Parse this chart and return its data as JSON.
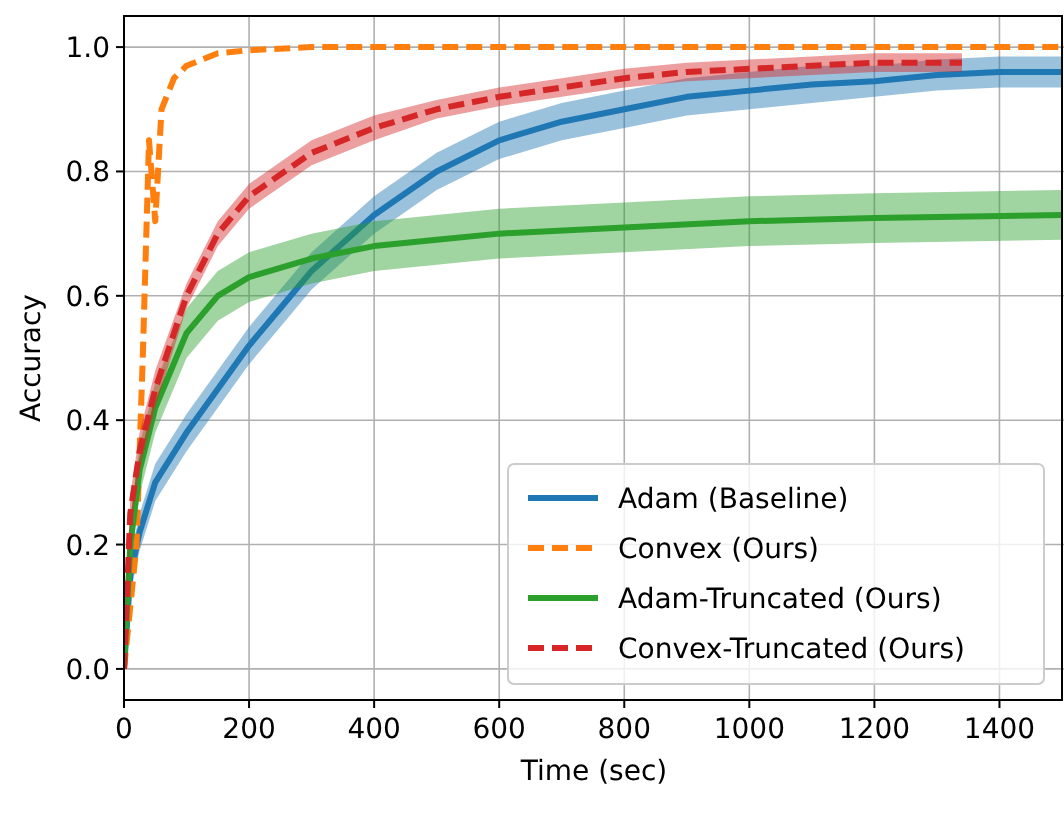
{
  "chart_data": {
    "type": "line",
    "xlabel": "Time (sec)",
    "ylabel": "Accuracy",
    "xlim": [
      0,
      1500
    ],
    "xticks": [
      0,
      200,
      400,
      600,
      800,
      1000,
      1200,
      1400
    ],
    "ylim": [
      -0.05,
      1.05
    ],
    "yticks": [
      {
        "value": 0,
        "label": "0.0"
      },
      {
        "value": 0.2,
        "label": "0.2"
      },
      {
        "value": 0.4,
        "label": "0.4"
      },
      {
        "value": 0.6,
        "label": "0.6"
      },
      {
        "value": 0.8,
        "label": "0.8"
      },
      {
        "value": 1,
        "label": "1.0"
      }
    ],
    "grid": true,
    "legend": "bottom right",
    "marker": "none",
    "series": [
      {
        "name": "Adam (Baseline)",
        "color": "#1f77b4",
        "line_style": "solid",
        "x": [
          0,
          10,
          25,
          50,
          100,
          150,
          200,
          250,
          300,
          400,
          500,
          600,
          700,
          800,
          900,
          1000,
          1100,
          1200,
          1300,
          1400,
          1500
        ],
        "values": [
          0,
          0.15,
          0.22,
          0.3,
          0.38,
          0.45,
          0.52,
          0.58,
          0.64,
          0.73,
          0.8,
          0.85,
          0.88,
          0.9,
          0.92,
          0.93,
          0.94,
          0.945,
          0.955,
          0.96,
          0.96
        ],
        "lower": [
          0,
          0.12,
          0.19,
          0.27,
          0.35,
          0.42,
          0.49,
          0.55,
          0.61,
          0.7,
          0.77,
          0.82,
          0.85,
          0.87,
          0.89,
          0.9,
          0.91,
          0.92,
          0.93,
          0.935,
          0.935
        ],
        "upper": [
          0,
          0.18,
          0.25,
          0.33,
          0.41,
          0.48,
          0.55,
          0.61,
          0.67,
          0.76,
          0.83,
          0.88,
          0.91,
          0.93,
          0.95,
          0.96,
          0.97,
          0.97,
          0.98,
          0.985,
          0.985
        ]
      },
      {
        "name": "Convex (Ours)",
        "color": "#ff7f0e",
        "line_style": "dashed",
        "x": [
          0,
          10,
          20,
          30,
          40,
          50,
          60,
          80,
          100,
          150,
          200,
          300,
          1500
        ],
        "values": [
          0,
          0.1,
          0.2,
          0.5,
          0.85,
          0.72,
          0.9,
          0.95,
          0.97,
          0.99,
          0.995,
          1,
          1
        ]
      },
      {
        "name": "Adam-Truncated (Ours)",
        "color": "#2ca02c",
        "line_style": "solid",
        "x": [
          0,
          10,
          25,
          50,
          100,
          150,
          200,
          300,
          400,
          500,
          600,
          800,
          1000,
          1200,
          1500
        ],
        "values": [
          0,
          0.2,
          0.32,
          0.42,
          0.54,
          0.6,
          0.63,
          0.66,
          0.68,
          0.69,
          0.7,
          0.71,
          0.72,
          0.725,
          0.73
        ],
        "lower": [
          0,
          0.16,
          0.28,
          0.38,
          0.5,
          0.56,
          0.59,
          0.62,
          0.64,
          0.65,
          0.66,
          0.67,
          0.68,
          0.685,
          0.69
        ],
        "upper": [
          0,
          0.24,
          0.36,
          0.46,
          0.58,
          0.64,
          0.67,
          0.7,
          0.72,
          0.73,
          0.74,
          0.75,
          0.76,
          0.765,
          0.77
        ]
      },
      {
        "name": "Convex-Truncated (Ours)",
        "color": "#d62728",
        "line_style": "dashed",
        "x": [
          0,
          10,
          25,
          50,
          100,
          150,
          200,
          300,
          400,
          500,
          600,
          700,
          800,
          900,
          1000,
          1100,
          1200,
          1340
        ],
        "values": [
          0,
          0.25,
          0.35,
          0.45,
          0.6,
          0.7,
          0.76,
          0.83,
          0.87,
          0.9,
          0.92,
          0.935,
          0.95,
          0.96,
          0.965,
          0.97,
          0.975,
          0.975
        ],
        "lower": [
          0,
          0.22,
          0.32,
          0.42,
          0.58,
          0.68,
          0.74,
          0.81,
          0.85,
          0.885,
          0.905,
          0.92,
          0.935,
          0.945,
          0.95,
          0.955,
          0.96,
          0.96
        ],
        "upper": [
          0,
          0.28,
          0.38,
          0.48,
          0.62,
          0.72,
          0.78,
          0.85,
          0.89,
          0.915,
          0.935,
          0.95,
          0.965,
          0.975,
          0.98,
          0.985,
          0.99,
          0.99
        ]
      }
    ]
  }
}
